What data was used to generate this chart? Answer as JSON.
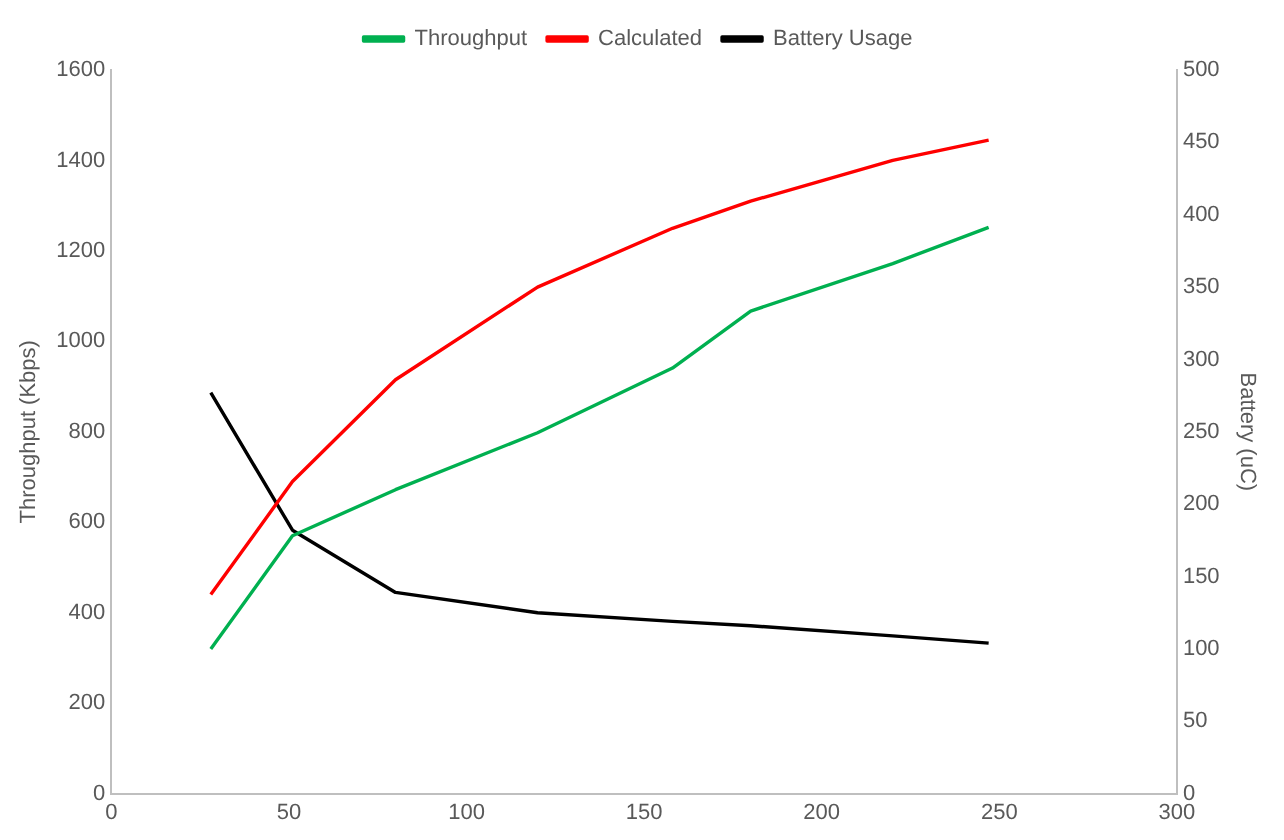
{
  "chart_data": {
    "type": "line",
    "x": [
      28,
      51,
      80,
      120,
      158,
      180,
      220,
      247
    ],
    "series": [
      {
        "name": "Throughput",
        "color": "#00b050",
        "values": [
          320,
          570,
          672,
          798,
          941,
          1067,
          1172,
          1252
        ]
      },
      {
        "name": "Calculated",
        "color": "#ff0000",
        "values": [
          440,
          690,
          915,
          1120,
          1250,
          1310,
          1400,
          1445
        ]
      },
      {
        "name": "Battery Usage",
        "color": "#000000",
        "axis": "y2",
        "values": [
          277,
          182,
          139,
          125,
          119,
          116,
          109,
          104
        ]
      }
    ],
    "ylabel": "Throughput (Kbps)",
    "y2label": "Battery (uC)",
    "xlim": [
      0,
      300
    ],
    "xticks": [
      0,
      50,
      100,
      150,
      200,
      250,
      300
    ],
    "ylim": [
      0,
      1600
    ],
    "yticks": [
      0,
      200,
      400,
      600,
      800,
      1000,
      1200,
      1400,
      1600
    ],
    "y2lim": [
      0,
      500
    ],
    "y2ticks": [
      0,
      50,
      100,
      150,
      200,
      250,
      300,
      350,
      400,
      450,
      500
    ],
    "legend": "top",
    "grid": false,
    "marker": "none",
    "line_style": "solid"
  }
}
